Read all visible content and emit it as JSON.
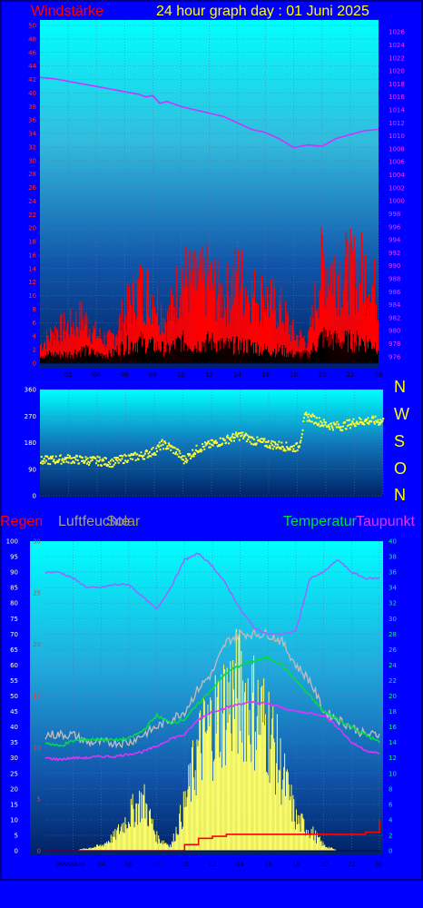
{
  "header": {
    "wind_label": "Windstärke",
    "title": "24 hour graph day : 01 Juni 2025"
  },
  "colors": {
    "background": "#0000ff",
    "wind": "#ff0000",
    "gust_dark": "#000000",
    "pressure": "#cc33ff",
    "direction": "#ffff33",
    "temperature": "#00dd44",
    "dewpoint": "#dd33ff",
    "humidity": "#9966ff",
    "rain": "#ff0000",
    "solar": "#ffff66",
    "uv_grey": "#bbbbbb"
  },
  "chart_data": [
    {
      "type": "area",
      "name": "wind-pressure",
      "left_axis": {
        "ticks": [
          0,
          2,
          4,
          6,
          8,
          10,
          12,
          14,
          16,
          18,
          20,
          22,
          24,
          26,
          28,
          30,
          32,
          34,
          36,
          38,
          40,
          42,
          44,
          46,
          48,
          50
        ],
        "range": [
          0,
          50
        ]
      },
      "right_axis": {
        "ticks": [
          976,
          978,
          980,
          982,
          984,
          986,
          988,
          990,
          992,
          994,
          996,
          998,
          1000,
          1002,
          1004,
          1006,
          1008,
          1010,
          1012,
          1014,
          1016,
          1018,
          1020,
          1022,
          1024,
          1026
        ],
        "range": [
          975,
          1027
        ]
      },
      "x_ticks": [
        "02",
        "04",
        "06",
        "08",
        "10",
        "12",
        "14",
        "16",
        "18",
        "20",
        "22",
        "00"
      ],
      "pressure_hours": [
        0,
        1,
        2,
        3,
        4,
        5,
        6,
        7,
        7.5,
        8,
        8.5,
        9,
        10,
        11,
        12,
        13,
        14,
        15,
        16,
        17,
        18,
        19,
        20,
        21,
        22,
        23,
        24
      ],
      "pressure_values": [
        1019,
        1018.8,
        1018.4,
        1018,
        1017.6,
        1017.2,
        1016.8,
        1016.4,
        1016,
        1016.2,
        1015,
        1015.3,
        1014.5,
        1014,
        1013.5,
        1013,
        1012,
        1011,
        1010.5,
        1009.5,
        1008.2,
        1008.6,
        1008.4,
        1009.6,
        1010.2,
        1010.8,
        1011
      ],
      "wind_hours": [
        0,
        1,
        2,
        3,
        4,
        5,
        6,
        7,
        8,
        9,
        10,
        11,
        12,
        13,
        14,
        15,
        16,
        17,
        18,
        19,
        20,
        21,
        22,
        23,
        24
      ],
      "wind_max": [
        4,
        7,
        8,
        10,
        6,
        5,
        11,
        16,
        15,
        9,
        19,
        17,
        18,
        14,
        19,
        15,
        14,
        12,
        6,
        5,
        22,
        20,
        20,
        20,
        14
      ],
      "gust_dark": [
        2,
        2,
        2,
        3,
        2,
        2,
        4,
        5,
        4,
        3,
        5,
        4,
        5,
        4,
        4,
        4,
        3,
        3,
        2,
        2,
        6,
        5,
        5,
        5,
        4
      ]
    },
    {
      "type": "scatter",
      "name": "wind-direction",
      "y_ticks": [
        0,
        90,
        180,
        270,
        360
      ],
      "range": [
        0,
        360
      ],
      "compass": [
        "N",
        "W",
        "S",
        "O",
        "N"
      ],
      "hours": [
        0,
        1,
        2,
        3,
        4,
        5,
        6,
        7,
        8,
        8.5,
        9,
        9.5,
        10,
        11,
        12,
        13,
        14,
        15,
        16,
        17,
        17.5,
        18,
        18.2,
        18.5,
        19,
        20,
        21,
        22,
        23,
        24
      ],
      "values": [
        118,
        122,
        125,
        120,
        118,
        112,
        128,
        135,
        152,
        175,
        165,
        150,
        120,
        160,
        175,
        190,
        205,
        185,
        175,
        168,
        162,
        165,
        200,
        270,
        262,
        240,
        235,
        250,
        255,
        252
      ]
    },
    {
      "type": "line",
      "name": "climate",
      "legend": [
        "Regen",
        "Luftfeuchte",
        "Solar",
        "Temperatur",
        "Taupunkt"
      ],
      "humidity_ticks": [
        0,
        5,
        10,
        15,
        20,
        25,
        30,
        35,
        40,
        45,
        50,
        55,
        60,
        65,
        70,
        75,
        80,
        85,
        90,
        95,
        100
      ],
      "rain_ticks": [
        0,
        5,
        10,
        15,
        20,
        25,
        30
      ],
      "temp_ticks": [
        0,
        2,
        4,
        6,
        8,
        10,
        12,
        14,
        16,
        18,
        20,
        22,
        24,
        26,
        28,
        30,
        32,
        34,
        36,
        38,
        40
      ],
      "x_ticks": [
        "02",
        "04",
        "06",
        "08",
        "10",
        "12",
        "14",
        "16",
        "18",
        "20",
        "22",
        "00"
      ],
      "x_left_labels": [
        "Moon",
        "Set"
      ],
      "hours": [
        0,
        1,
        2,
        3,
        4,
        5,
        6,
        7,
        8,
        9,
        10,
        11,
        12,
        13,
        14,
        15,
        16,
        17,
        18,
        19,
        20,
        21,
        22,
        23,
        24
      ],
      "humidity": [
        90,
        90,
        88,
        85,
        85,
        86,
        86,
        82,
        78,
        85,
        94,
        96,
        92,
        86,
        78,
        72,
        70,
        70,
        71,
        88,
        90,
        94,
        90,
        88,
        88
      ],
      "temperature": [
        14,
        13.5,
        14.2,
        14.4,
        14.4,
        14.3,
        14.5,
        15.5,
        17.5,
        16.5,
        17,
        19,
        21,
        23,
        24,
        24.5,
        25,
        24,
        22,
        20,
        18,
        17,
        16,
        15,
        14
      ],
      "dewpoint": [
        12,
        11.8,
        12,
        12,
        12.2,
        12.2,
        12.5,
        12.8,
        13.5,
        14.5,
        15,
        17,
        18,
        18.5,
        19,
        19.2,
        19,
        18.5,
        18,
        17.8,
        17.5,
        16,
        14,
        13,
        12.5
      ],
      "uv_index": [
        15,
        15,
        15,
        14,
        14,
        14,
        14,
        15,
        16,
        17,
        18,
        21,
        23,
        27,
        28,
        28,
        28,
        27,
        24,
        22,
        18,
        17,
        16,
        15,
        15
      ],
      "rain_mm": [
        0,
        0,
        0,
        0,
        0,
        0,
        0,
        0,
        0,
        0,
        0.6,
        1.2,
        1.4,
        1.6,
        1.6,
        1.6,
        1.6,
        1.6,
        1.6,
        1.6,
        1.6,
        1.6,
        1.6,
        1.8,
        3
      ],
      "solar_percent": [
        0,
        0,
        0,
        1,
        2,
        6,
        14,
        20,
        5,
        2,
        18,
        40,
        50,
        58,
        62,
        55,
        48,
        30,
        12,
        8,
        2,
        0,
        0,
        0,
        0
      ]
    }
  ]
}
